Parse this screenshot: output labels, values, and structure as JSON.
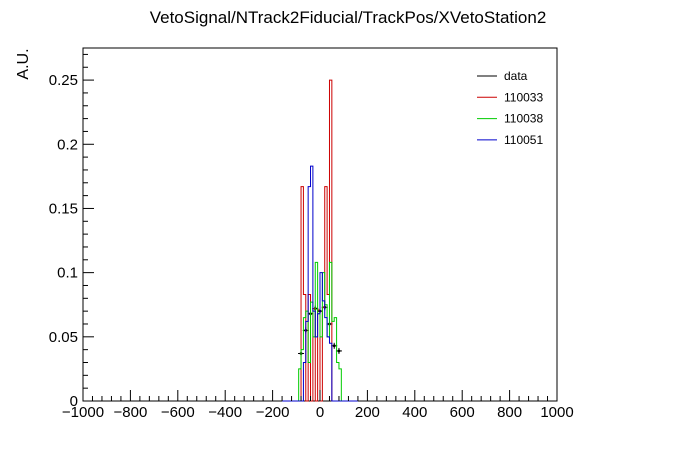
{
  "chart_data": {
    "type": "step-histogram",
    "title": "VetoSignal/NTrack2Fiducial/TrackPos/XVetoStation2",
    "xlabel": "",
    "ylabel": "A.U.",
    "xlim": [
      -1000,
      1000
    ],
    "ylim": [
      0,
      0.275
    ],
    "x_ticks": [
      -1000,
      -800,
      -600,
      -400,
      -200,
      0,
      200,
      400,
      600,
      800,
      1000
    ],
    "x_tick_labels": [
      "−1000",
      "−800",
      "−600",
      "−400",
      "−200",
      "0",
      "200",
      "400",
      "600",
      "800",
      "1000"
    ],
    "y_ticks": [
      0,
      0.05,
      0.1,
      0.15,
      0.2,
      0.25
    ],
    "y_tick_labels": [
      "0",
      "0.05",
      "0.1",
      "0.15",
      "0.2",
      "0.25"
    ],
    "legend_position": "top-right",
    "grid": false,
    "series": [
      {
        "name": "data",
        "color": "#000000",
        "style": "points",
        "x": [
          -80,
          -60,
          -40,
          -20,
          0,
          20,
          40,
          60,
          80
        ],
        "y": [
          0.037,
          0.055,
          0.068,
          0.072,
          0.07,
          0.073,
          0.06,
          0.043,
          0.039
        ]
      },
      {
        "name": "110033",
        "color": "#cc0000",
        "style": "step",
        "edges": [
          -160,
          -140,
          -120,
          -100,
          -90,
          -80,
          -70,
          -60,
          -50,
          -40,
          -30,
          -20,
          -10,
          0,
          10,
          20,
          30,
          40,
          50,
          60,
          70,
          80,
          90,
          100,
          120,
          140,
          160
        ],
        "values": [
          0,
          0,
          0,
          0,
          0,
          0.167,
          0.083,
          0,
          0.083,
          0,
          0.072,
          0,
          0.071,
          0,
          0.073,
          0.167,
          0.083,
          0.25,
          0,
          0,
          0,
          0,
          0,
          0,
          0,
          0
        ]
      },
      {
        "name": "110038",
        "color": "#00cc00",
        "style": "step",
        "edges": [
          -160,
          -140,
          -120,
          -100,
          -90,
          -80,
          -70,
          -60,
          -50,
          -40,
          -30,
          -20,
          -10,
          0,
          10,
          20,
          30,
          40,
          50,
          60,
          70,
          80,
          90,
          100,
          120,
          140,
          160
        ],
        "values": [
          0,
          0,
          0,
          0,
          0.025,
          0.04,
          0.065,
          0.07,
          0.03,
          0.077,
          0.05,
          0.108,
          0.068,
          0.05,
          0.1,
          0.075,
          0.05,
          0.108,
          0.062,
          0.065,
          0.03,
          0.025,
          0,
          0,
          0,
          0
        ]
      },
      {
        "name": "110051",
        "color": "#0000cc",
        "style": "step",
        "edges": [
          -160,
          -140,
          -120,
          -100,
          -90,
          -80,
          -70,
          -60,
          -50,
          -40,
          -30,
          -20,
          -10,
          0,
          10,
          20,
          30,
          40,
          50,
          60,
          70,
          80,
          90,
          100,
          120,
          140,
          160
        ],
        "values": [
          0,
          0,
          0,
          0,
          0,
          0,
          0.03,
          0.062,
          0.167,
          0.183,
          0.07,
          0.05,
          0.068,
          0.1,
          0.078,
          0.065,
          0.05,
          0.045,
          0,
          0,
          0,
          0,
          0,
          0,
          0,
          0
        ]
      }
    ]
  }
}
